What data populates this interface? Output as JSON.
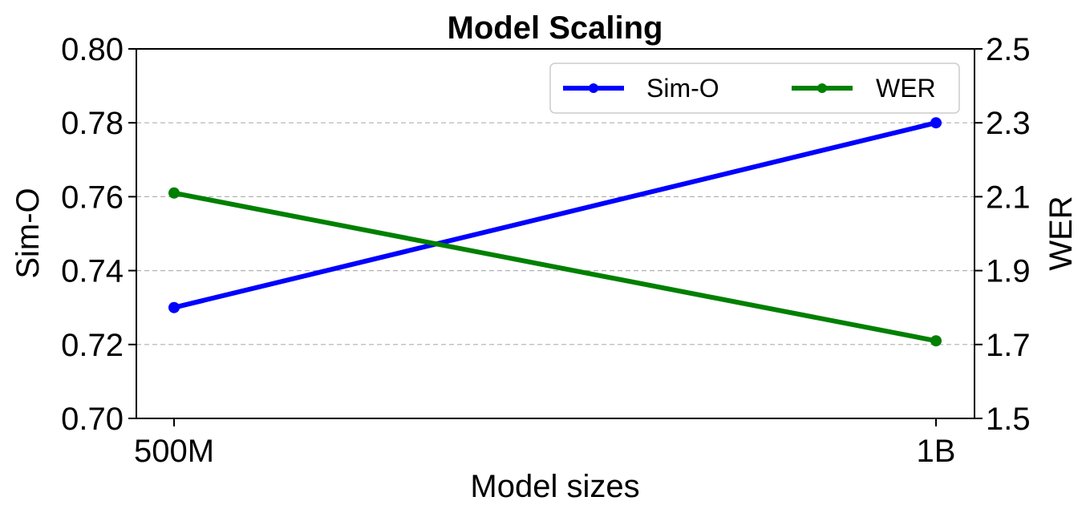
{
  "chart_data": {
    "type": "line",
    "title": "Model Scaling",
    "xlabel": "Model sizes",
    "ylabel_left": "Sim-O",
    "ylabel_right": "WER",
    "categories": [
      "500M",
      "1B"
    ],
    "y_left_ticks": [
      "0.70",
      "0.72",
      "0.74",
      "0.76",
      "0.78",
      "0.80"
    ],
    "y_right_ticks": [
      "1.5",
      "1.7",
      "1.9",
      "2.1",
      "2.3",
      "2.5"
    ],
    "ylim_left": [
      0.7,
      0.8
    ],
    "ylim_right": [
      1.5,
      2.5
    ],
    "grid": "horizontal dashed",
    "legend_position": "top-right",
    "series": [
      {
        "name": "Sim-O",
        "axis": "left",
        "values": [
          0.73,
          0.78
        ],
        "color": "#0000ff"
      },
      {
        "name": "WER",
        "axis": "right",
        "values": [
          2.11,
          1.71
        ],
        "color": "#008000"
      }
    ]
  }
}
